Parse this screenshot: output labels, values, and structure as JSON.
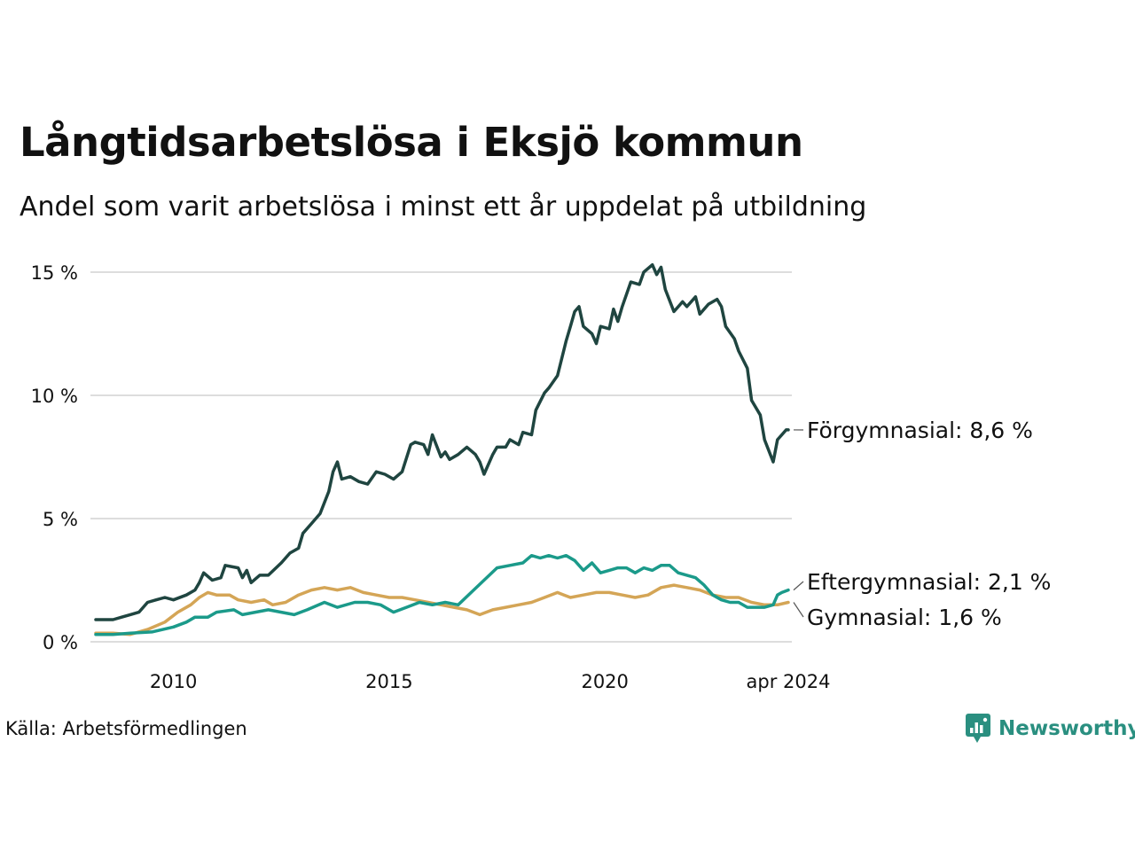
{
  "title": "Långtidsarbetslösa i Eksjö kommun",
  "subtitle": "Andel som varit arbetslösa i minst ett år uppdelat på utbildning",
  "source": "Källa: Arbetsförmedlingen",
  "brand": {
    "name": "Newsworthy",
    "color": "#2a8f80"
  },
  "chart_data": {
    "type": "line",
    "title": "Långtidsarbetslösa i Eksjö kommun",
    "subtitle": "Andel som varit arbetslösa i minst ett år uppdelat på utbildning",
    "xlabel": "",
    "ylabel": "",
    "xlim": [
      2008.2,
      2024.25
    ],
    "ylim": [
      0,
      15
    ],
    "grid": true,
    "x_ticks": [
      {
        "value": 2010,
        "label": "2010"
      },
      {
        "value": 2015,
        "label": "2015"
      },
      {
        "value": 2020,
        "label": "2020"
      },
      {
        "value": 2024.25,
        "label": "apr 2024"
      }
    ],
    "y_ticks": [
      {
        "value": 0,
        "label": "0 %"
      },
      {
        "value": 5,
        "label": "5 %"
      },
      {
        "value": 10,
        "label": "10 %"
      },
      {
        "value": 15,
        "label": "15 %"
      }
    ],
    "series": [
      {
        "name": "Förgymnasial",
        "end_label": "Förgymnasial: 8,6 %",
        "color": "#1f4540",
        "points": [
          [
            2008.2,
            0.9
          ],
          [
            2008.4,
            0.9
          ],
          [
            2008.6,
            0.9
          ],
          [
            2008.8,
            1.0
          ],
          [
            2009.0,
            1.1
          ],
          [
            2009.2,
            1.2
          ],
          [
            2009.4,
            1.6
          ],
          [
            2009.6,
            1.7
          ],
          [
            2009.8,
            1.8
          ],
          [
            2010.0,
            1.7
          ],
          [
            2010.3,
            1.9
          ],
          [
            2010.5,
            2.1
          ],
          [
            2010.6,
            2.4
          ],
          [
            2010.7,
            2.8
          ],
          [
            2010.9,
            2.5
          ],
          [
            2011.1,
            2.6
          ],
          [
            2011.2,
            3.1
          ],
          [
            2011.5,
            3.0
          ],
          [
            2011.6,
            2.6
          ],
          [
            2011.7,
            2.9
          ],
          [
            2011.8,
            2.4
          ],
          [
            2012.0,
            2.7
          ],
          [
            2012.2,
            2.7
          ],
          [
            2012.5,
            3.2
          ],
          [
            2012.7,
            3.6
          ],
          [
            2012.9,
            3.8
          ],
          [
            2013.0,
            4.4
          ],
          [
            2013.2,
            4.8
          ],
          [
            2013.4,
            5.2
          ],
          [
            2013.6,
            6.1
          ],
          [
            2013.7,
            6.9
          ],
          [
            2013.8,
            7.3
          ],
          [
            2013.9,
            6.6
          ],
          [
            2014.1,
            6.7
          ],
          [
            2014.3,
            6.5
          ],
          [
            2014.5,
            6.4
          ],
          [
            2014.7,
            6.9
          ],
          [
            2014.9,
            6.8
          ],
          [
            2015.1,
            6.6
          ],
          [
            2015.3,
            6.9
          ],
          [
            2015.5,
            8.0
          ],
          [
            2015.6,
            8.1
          ],
          [
            2015.8,
            8.0
          ],
          [
            2015.9,
            7.6
          ],
          [
            2016.0,
            8.4
          ],
          [
            2016.2,
            7.5
          ],
          [
            2016.3,
            7.7
          ],
          [
            2016.4,
            7.4
          ],
          [
            2016.6,
            7.6
          ],
          [
            2016.8,
            7.9
          ],
          [
            2017.0,
            7.6
          ],
          [
            2017.1,
            7.3
          ],
          [
            2017.2,
            6.8
          ],
          [
            2017.4,
            7.6
          ],
          [
            2017.5,
            7.9
          ],
          [
            2017.7,
            7.9
          ],
          [
            2017.8,
            8.2
          ],
          [
            2018.0,
            8.0
          ],
          [
            2018.1,
            8.5
          ],
          [
            2018.3,
            8.4
          ],
          [
            2018.4,
            9.4
          ],
          [
            2018.6,
            10.1
          ],
          [
            2018.7,
            10.3
          ],
          [
            2018.9,
            10.8
          ],
          [
            2019.1,
            12.2
          ],
          [
            2019.2,
            12.8
          ],
          [
            2019.3,
            13.4
          ],
          [
            2019.4,
            13.6
          ],
          [
            2019.5,
            12.8
          ],
          [
            2019.7,
            12.5
          ],
          [
            2019.8,
            12.1
          ],
          [
            2019.9,
            12.8
          ],
          [
            2020.1,
            12.7
          ],
          [
            2020.2,
            13.5
          ],
          [
            2020.3,
            13.0
          ],
          [
            2020.4,
            13.6
          ],
          [
            2020.6,
            14.6
          ],
          [
            2020.8,
            14.5
          ],
          [
            2020.9,
            15.0
          ],
          [
            2021.1,
            15.3
          ],
          [
            2021.2,
            14.9
          ],
          [
            2021.3,
            15.2
          ],
          [
            2021.4,
            14.3
          ],
          [
            2021.6,
            13.4
          ],
          [
            2021.8,
            13.8
          ],
          [
            2021.9,
            13.6
          ],
          [
            2022.1,
            14.0
          ],
          [
            2022.2,
            13.3
          ],
          [
            2022.4,
            13.7
          ],
          [
            2022.6,
            13.9
          ],
          [
            2022.7,
            13.6
          ],
          [
            2022.8,
            12.8
          ],
          [
            2023.0,
            12.3
          ],
          [
            2023.1,
            11.8
          ],
          [
            2023.3,
            11.1
          ],
          [
            2023.4,
            9.8
          ],
          [
            2023.6,
            9.2
          ],
          [
            2023.7,
            8.2
          ],
          [
            2023.9,
            7.3
          ],
          [
            2024.0,
            8.2
          ],
          [
            2024.1,
            8.4
          ],
          [
            2024.2,
            8.6
          ],
          [
            2024.25,
            8.6
          ]
        ]
      },
      {
        "name": "Eftergymnasial",
        "end_label": "Eftergymnasial: 2,1 %",
        "color": "#1b9a8a",
        "points": [
          [
            2008.2,
            0.3
          ],
          [
            2008.6,
            0.3
          ],
          [
            2009.0,
            0.35
          ],
          [
            2009.5,
            0.4
          ],
          [
            2010.0,
            0.6
          ],
          [
            2010.3,
            0.8
          ],
          [
            2010.5,
            1.0
          ],
          [
            2010.8,
            1.0
          ],
          [
            2011.0,
            1.2
          ],
          [
            2011.4,
            1.3
          ],
          [
            2011.6,
            1.1
          ],
          [
            2011.9,
            1.2
          ],
          [
            2012.2,
            1.3
          ],
          [
            2012.5,
            1.2
          ],
          [
            2012.8,
            1.1
          ],
          [
            2013.1,
            1.3
          ],
          [
            2013.5,
            1.6
          ],
          [
            2013.8,
            1.4
          ],
          [
            2014.2,
            1.6
          ],
          [
            2014.5,
            1.6
          ],
          [
            2014.8,
            1.5
          ],
          [
            2015.1,
            1.2
          ],
          [
            2015.4,
            1.4
          ],
          [
            2015.7,
            1.6
          ],
          [
            2016.0,
            1.5
          ],
          [
            2016.3,
            1.6
          ],
          [
            2016.6,
            1.5
          ],
          [
            2016.9,
            2.0
          ],
          [
            2017.2,
            2.5
          ],
          [
            2017.5,
            3.0
          ],
          [
            2017.8,
            3.1
          ],
          [
            2018.1,
            3.2
          ],
          [
            2018.3,
            3.5
          ],
          [
            2018.5,
            3.4
          ],
          [
            2018.7,
            3.5
          ],
          [
            2018.9,
            3.4
          ],
          [
            2019.1,
            3.5
          ],
          [
            2019.3,
            3.3
          ],
          [
            2019.5,
            2.9
          ],
          [
            2019.7,
            3.2
          ],
          [
            2019.9,
            2.8
          ],
          [
            2020.1,
            2.9
          ],
          [
            2020.3,
            3.0
          ],
          [
            2020.5,
            3.0
          ],
          [
            2020.7,
            2.8
          ],
          [
            2020.9,
            3.0
          ],
          [
            2021.1,
            2.9
          ],
          [
            2021.3,
            3.1
          ],
          [
            2021.5,
            3.1
          ],
          [
            2021.7,
            2.8
          ],
          [
            2021.9,
            2.7
          ],
          [
            2022.1,
            2.6
          ],
          [
            2022.3,
            2.3
          ],
          [
            2022.5,
            1.9
          ],
          [
            2022.7,
            1.7
          ],
          [
            2022.9,
            1.6
          ],
          [
            2023.1,
            1.6
          ],
          [
            2023.3,
            1.4
          ],
          [
            2023.5,
            1.4
          ],
          [
            2023.7,
            1.4
          ],
          [
            2023.9,
            1.5
          ],
          [
            2024.0,
            1.9
          ],
          [
            2024.1,
            2.0
          ],
          [
            2024.25,
            2.1
          ]
        ]
      },
      {
        "name": "Gymnasial",
        "end_label": "Gymnasial: 1,6 %",
        "color": "#d4a556",
        "points": [
          [
            2008.2,
            0.35
          ],
          [
            2008.6,
            0.35
          ],
          [
            2009.0,
            0.3
          ],
          [
            2009.4,
            0.5
          ],
          [
            2009.8,
            0.8
          ],
          [
            2010.1,
            1.2
          ],
          [
            2010.4,
            1.5
          ],
          [
            2010.6,
            1.8
          ],
          [
            2010.8,
            2.0
          ],
          [
            2011.0,
            1.9
          ],
          [
            2011.3,
            1.9
          ],
          [
            2011.5,
            1.7
          ],
          [
            2011.8,
            1.6
          ],
          [
            2012.1,
            1.7
          ],
          [
            2012.3,
            1.5
          ],
          [
            2012.6,
            1.6
          ],
          [
            2012.9,
            1.9
          ],
          [
            2013.2,
            2.1
          ],
          [
            2013.5,
            2.2
          ],
          [
            2013.8,
            2.1
          ],
          [
            2014.1,
            2.2
          ],
          [
            2014.4,
            2.0
          ],
          [
            2014.7,
            1.9
          ],
          [
            2015.0,
            1.8
          ],
          [
            2015.3,
            1.8
          ],
          [
            2015.6,
            1.7
          ],
          [
            2015.9,
            1.6
          ],
          [
            2016.2,
            1.5
          ],
          [
            2016.5,
            1.4
          ],
          [
            2016.8,
            1.3
          ],
          [
            2017.1,
            1.1
          ],
          [
            2017.4,
            1.3
          ],
          [
            2017.7,
            1.4
          ],
          [
            2018.0,
            1.5
          ],
          [
            2018.3,
            1.6
          ],
          [
            2018.6,
            1.8
          ],
          [
            2018.9,
            2.0
          ],
          [
            2019.2,
            1.8
          ],
          [
            2019.5,
            1.9
          ],
          [
            2019.8,
            2.0
          ],
          [
            2020.1,
            2.0
          ],
          [
            2020.4,
            1.9
          ],
          [
            2020.7,
            1.8
          ],
          [
            2021.0,
            1.9
          ],
          [
            2021.3,
            2.2
          ],
          [
            2021.6,
            2.3
          ],
          [
            2021.9,
            2.2
          ],
          [
            2022.2,
            2.1
          ],
          [
            2022.5,
            1.9
          ],
          [
            2022.8,
            1.8
          ],
          [
            2023.1,
            1.8
          ],
          [
            2023.4,
            1.6
          ],
          [
            2023.7,
            1.5
          ],
          [
            2024.0,
            1.5
          ],
          [
            2024.25,
            1.6
          ]
        ]
      }
    ]
  }
}
